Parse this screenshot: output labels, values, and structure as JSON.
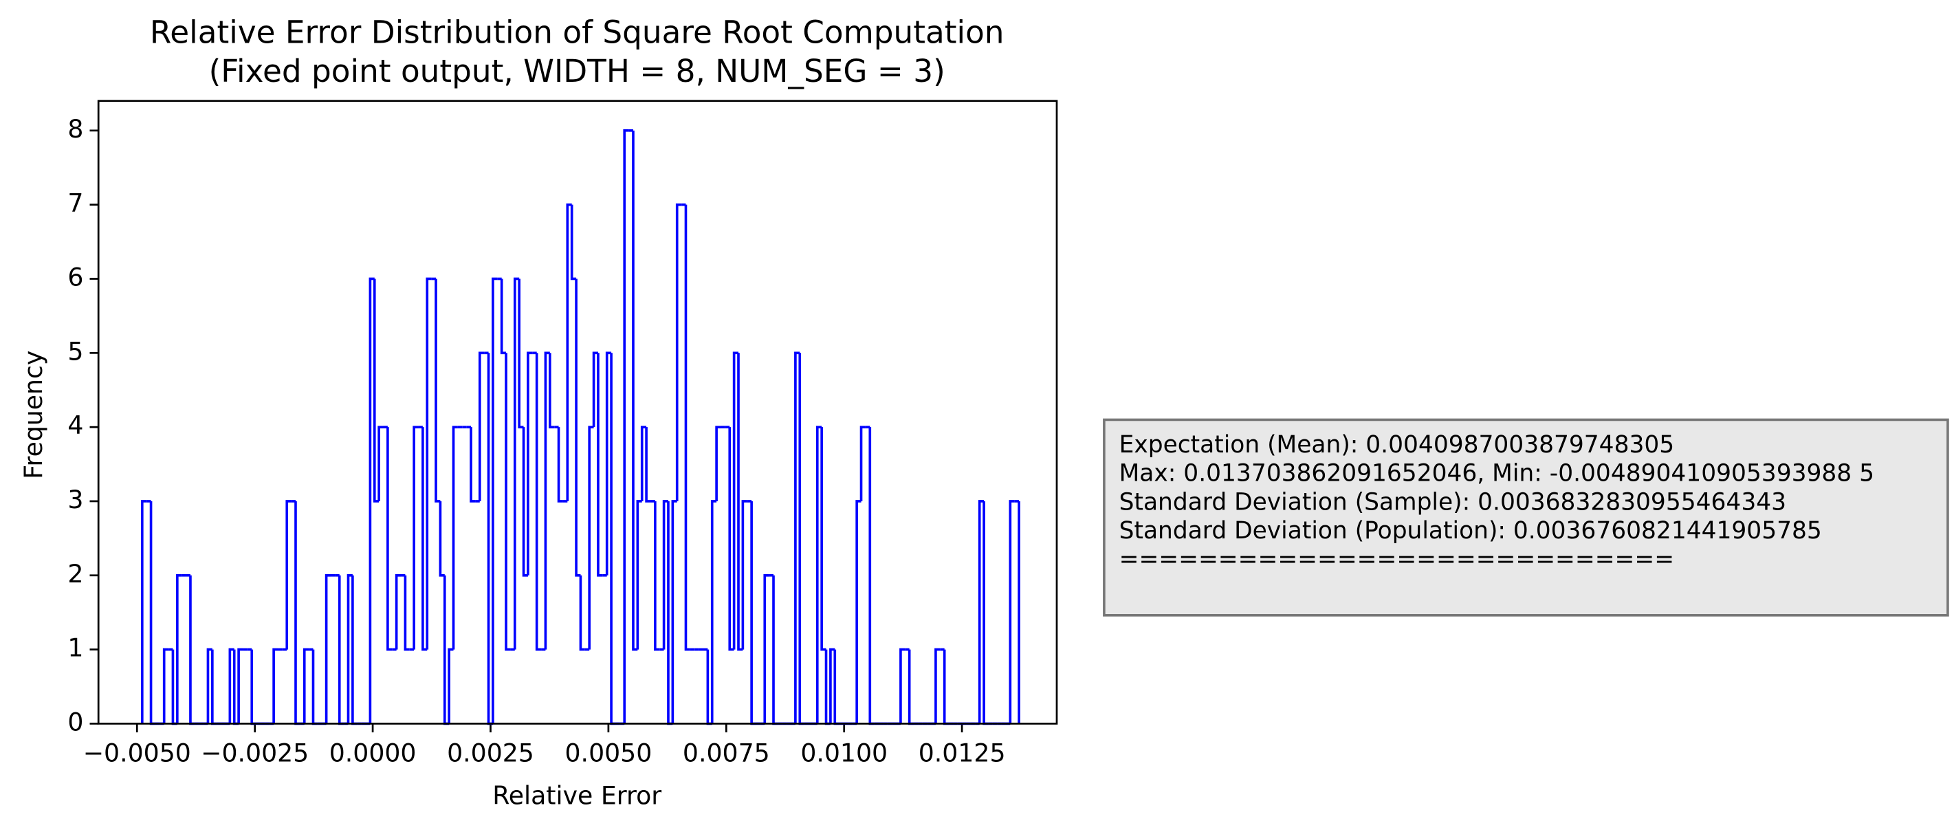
{
  "chart_data": {
    "type": "histogram",
    "title": [
      "Relative Error Distribution of Square Root Computation",
      "(Fixed point output, WIDTH = 8, NUM_SEG = 3)"
    ],
    "x_label": "Relative Error",
    "y_label": "Frequency",
    "histtype": "step",
    "color": "#0000ff",
    "bins": [
      -0.00489,
      -0.004797,
      -0.004704,
      -0.004611,
      -0.004518,
      -0.004425,
      -0.004332,
      -0.004239,
      -0.004146,
      -0.004053,
      -0.00396,
      -0.003867,
      -0.003774,
      -0.003681,
      -0.003588,
      -0.003495,
      -0.003402,
      -0.003309,
      -0.003216,
      -0.003123,
      -0.00303,
      -0.002937,
      -0.002844,
      -0.002751,
      -0.002658,
      -0.002565,
      -0.002472,
      -0.002379,
      -0.002286,
      -0.002193,
      -0.0021,
      -0.002007,
      -0.001914,
      -0.001821,
      -0.001728,
      -0.001635,
      -0.001542,
      -0.001449,
      -0.001356,
      -0.001263,
      -0.00117,
      -0.001077,
      -0.000984,
      -0.000891,
      -0.000798,
      -0.000705,
      -0.000612,
      -0.000519,
      -0.000426,
      -0.000333,
      -0.00024,
      -0.000147,
      -5.4e-05,
      3.9e-05,
      0.000132,
      0.000225,
      0.000318,
      0.000411,
      0.000504,
      0.000597,
      0.00069,
      0.000783,
      0.000876,
      0.000969,
      0.001062,
      0.001155,
      0.001248,
      0.001341,
      0.001434,
      0.001527,
      0.00162,
      0.001713,
      0.001806,
      0.001899,
      0.001992,
      0.002085,
      0.002178,
      0.002271,
      0.002364,
      0.002457,
      0.00255,
      0.002643,
      0.002736,
      0.002829,
      0.002922,
      0.003015,
      0.003108,
      0.003201,
      0.003294,
      0.003387,
      0.00348,
      0.003573,
      0.003666,
      0.003759,
      0.003852,
      0.003945,
      0.004038,
      0.004131,
      0.004224,
      0.004317,
      0.00441,
      0.004503,
      0.004596,
      0.004689,
      0.004782,
      0.004875,
      0.004968,
      0.005061,
      0.005154,
      0.005247,
      0.00534,
      0.005433,
      0.005526,
      0.005619,
      0.005712,
      0.005805,
      0.005898,
      0.005991,
      0.006084,
      0.006177,
      0.00627,
      0.006363,
      0.006456,
      0.006549,
      0.006642,
      0.006735,
      0.006828,
      0.006921,
      0.007014,
      0.007107,
      0.0072,
      0.007293,
      0.007386,
      0.007479,
      0.007572,
      0.007665,
      0.007758,
      0.007851,
      0.007944,
      0.008037,
      0.00813,
      0.008223,
      0.008316,
      0.008409,
      0.008502,
      0.008595,
      0.008688,
      0.008781,
      0.008874,
      0.008967,
      0.00906,
      0.009153,
      0.009246,
      0.009339,
      0.009432,
      0.009525,
      0.009618,
      0.009711,
      0.009804,
      0.009897,
      0.00999,
      0.010083,
      0.010176,
      0.010269,
      0.010362,
      0.010455,
      0.010548,
      0.010641,
      0.010734,
      0.010827,
      0.01092,
      0.011013,
      0.011106,
      0.011199,
      0.011292,
      0.011385,
      0.011478,
      0.011571,
      0.011664,
      0.011757,
      0.01185,
      0.011943,
      0.012036,
      0.012129,
      0.012222,
      0.012315,
      0.012408,
      0.012501,
      0.012594,
      0.012687,
      0.01278,
      0.012873,
      0.012966,
      0.013059,
      0.013152,
      0.013245,
      0.013338,
      0.013431,
      0.013524,
      0.013617,
      0.01371
    ],
    "values": [
      3,
      3,
      0,
      0,
      0,
      1,
      1,
      0,
      2,
      2,
      2,
      0,
      0,
      0,
      0,
      1,
      0,
      0,
      0,
      0,
      1,
      0,
      1,
      1,
      1,
      0,
      0,
      0,
      0,
      0,
      1,
      1,
      1,
      3,
      3,
      0,
      0,
      1,
      1,
      0,
      0,
      0,
      2,
      2,
      2,
      0,
      0,
      2,
      0,
      0,
      0,
      0,
      6,
      3,
      4,
      4,
      1,
      1,
      2,
      2,
      1,
      1,
      4,
      4,
      1,
      6,
      6,
      3,
      2,
      0,
      1,
      4,
      4,
      4,
      4,
      3,
      3,
      5,
      5,
      0,
      6,
      6,
      5,
      1,
      1,
      6,
      4,
      2,
      5,
      5,
      1,
      1,
      5,
      4,
      4,
      3,
      3,
      7,
      6,
      2,
      1,
      1,
      4,
      5,
      2,
      2,
      5,
      0,
      0,
      0,
      8,
      8,
      1,
      3,
      4,
      3,
      3,
      1,
      1,
      3,
      0,
      3,
      7,
      7,
      1,
      1,
      1,
      1,
      1,
      0,
      3,
      4,
      4,
      4,
      1,
      5,
      1,
      3,
      3,
      0,
      0,
      0,
      2,
      2,
      0,
      0,
      0,
      0,
      0,
      5,
      0,
      0,
      0,
      0,
      4,
      1,
      0,
      1,
      0,
      0,
      0,
      0,
      0,
      3,
      4,
      4,
      0,
      0,
      0,
      0,
      0,
      0,
      0,
      1,
      1,
      0,
      0,
      0,
      0,
      0,
      0,
      1,
      1,
      0,
      0,
      0,
      0,
      0,
      0,
      0,
      0,
      3,
      0,
      0,
      0,
      0,
      0,
      0,
      3,
      3
    ],
    "xlim": [
      -0.005818,
      0.014511
    ],
    "xticks": [
      {
        "value": -0.005,
        "label": "−0.0050"
      },
      {
        "value": -0.0025,
        "label": "−0.0025"
      },
      {
        "value": 0,
        "label": "0.0000"
      },
      {
        "value": 0.0025,
        "label": "0.0025"
      },
      {
        "value": 0.005,
        "label": "0.0050"
      },
      {
        "value": 0.0075,
        "label": "0.0075"
      },
      {
        "value": 0.01,
        "label": "0.0100"
      },
      {
        "value": 0.0125,
        "label": "0.0125"
      }
    ],
    "ylim": [
      0,
      8.4
    ],
    "yticks": [
      0,
      1,
      2,
      3,
      4,
      5,
      6,
      7,
      8
    ],
    "grid": false,
    "stats_box": [
      "Expectation (Mean): 0.0040987003879748305",
      "Max: 0.013703862091652046, Min: -0.004890410905393988 5",
      "Standard Deviation (Sample): 0.0036832830955464343",
      "Standard Deviation (Population): 0.0036760821441905785",
      "============================"
    ]
  }
}
